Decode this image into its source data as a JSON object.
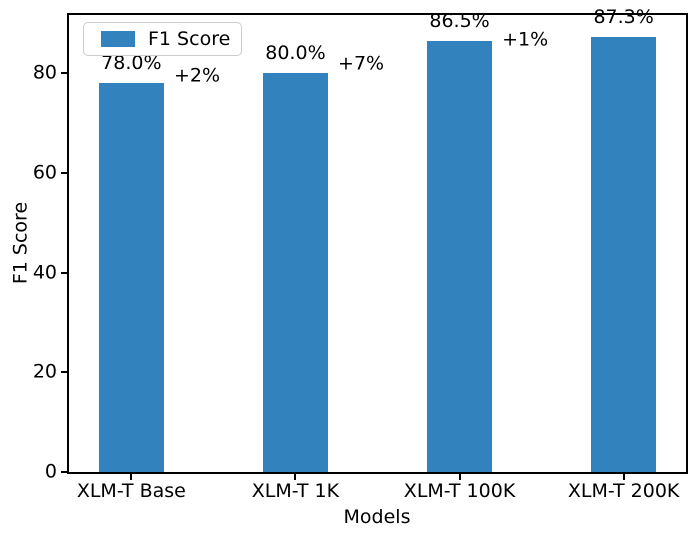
{
  "chart_data": {
    "type": "bar",
    "xlabel": "Models",
    "ylabel": "F1 Score",
    "categories": [
      "XLM-T Base",
      "XLM-T 1K",
      "XLM-T 100K",
      "XLM-T 200K"
    ],
    "values": [
      78.0,
      80.0,
      86.5,
      87.3
    ],
    "bar_labels": [
      "78.0%",
      "80.0%",
      "86.5%",
      "87.3%"
    ],
    "annotations": [
      {
        "text": "+2%",
        "x": 0.4,
        "y": 79.4
      },
      {
        "text": "+7%",
        "x": 1.4,
        "y": 81.8
      },
      {
        "text": "+1%",
        "x": 2.4,
        "y": 86.6
      }
    ],
    "legend": {
      "label": "F1 Score",
      "position": "upper left"
    },
    "bar_color": "#3182bd",
    "axis_color": "#000000",
    "xlim": [
      -0.38,
      3.38
    ],
    "ylim": [
      0,
      91.7
    ],
    "yticks": [
      0,
      20,
      40,
      60,
      80
    ],
    "bar_width_units": 0.4,
    "grid": false
  }
}
